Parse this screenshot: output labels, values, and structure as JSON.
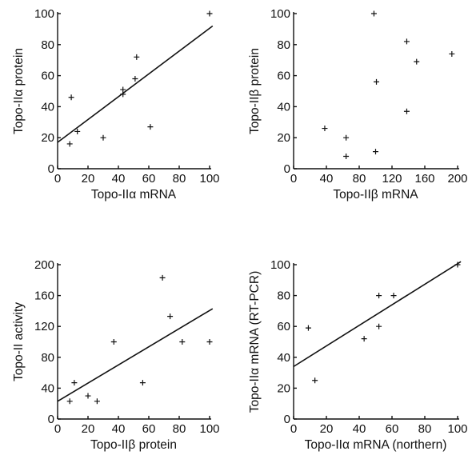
{
  "chart_data": [
    {
      "type": "scatter",
      "xlabel": "Topo-IIα mRNA",
      "ylabel": "Topo-IIα protein",
      "xlim": [
        0,
        100
      ],
      "ylim": [
        0,
        100
      ],
      "xticks": [
        0,
        20,
        40,
        60,
        80,
        100
      ],
      "yticks": [
        0,
        20,
        40,
        60,
        80,
        100
      ],
      "points": [
        {
          "x": 8,
          "y": 16
        },
        {
          "x": 9,
          "y": 46
        },
        {
          "x": 13,
          "y": 24
        },
        {
          "x": 30,
          "y": 20
        },
        {
          "x": 43,
          "y": 48
        },
        {
          "x": 43,
          "y": 51
        },
        {
          "x": 51,
          "y": 58
        },
        {
          "x": 52,
          "y": 72
        },
        {
          "x": 61,
          "y": 27
        },
        {
          "x": 100,
          "y": 100
        }
      ],
      "fit_line": [
        [
          0,
          17
        ],
        [
          102,
          92
        ]
      ]
    },
    {
      "type": "scatter",
      "xlabel": "Topo-IIβ mRNA",
      "ylabel": "Topo-IIβ protein",
      "xlim": [
        0,
        200
      ],
      "ylim": [
        0,
        100
      ],
      "xticks": [
        0,
        40,
        80,
        120,
        160,
        200
      ],
      "yticks": [
        0,
        20,
        40,
        60,
        80,
        100
      ],
      "points": [
        {
          "x": 38,
          "y": 26
        },
        {
          "x": 64,
          "y": 20
        },
        {
          "x": 64,
          "y": 8
        },
        {
          "x": 98,
          "y": 100
        },
        {
          "x": 101,
          "y": 56
        },
        {
          "x": 100,
          "y": 11
        },
        {
          "x": 138,
          "y": 82
        },
        {
          "x": 138,
          "y": 37
        },
        {
          "x": 150,
          "y": 69
        },
        {
          "x": 193,
          "y": 74
        }
      ]
    },
    {
      "type": "scatter",
      "xlabel": "Topo-IIβ protein",
      "ylabel": "Topo-II activity",
      "xlim": [
        0,
        100
      ],
      "ylim": [
        0,
        200
      ],
      "xticks": [
        0,
        20,
        40,
        60,
        80,
        100
      ],
      "yticks": [
        0,
        40,
        80,
        120,
        160,
        200
      ],
      "points": [
        {
          "x": 8,
          "y": 23
        },
        {
          "x": 11,
          "y": 47
        },
        {
          "x": 20,
          "y": 30
        },
        {
          "x": 26,
          "y": 23
        },
        {
          "x": 37,
          "y": 100
        },
        {
          "x": 56,
          "y": 47
        },
        {
          "x": 69,
          "y": 183
        },
        {
          "x": 74,
          "y": 133
        },
        {
          "x": 82,
          "y": 100
        },
        {
          "x": 100,
          "y": 100
        }
      ],
      "fit_line": [
        [
          0,
          23
        ],
        [
          102,
          143
        ]
      ]
    },
    {
      "type": "scatter",
      "xlabel": "Topo-IIα mRNA (northern)",
      "ylabel": "Topo-IIα mRNA (RT-PCR)",
      "xlim": [
        0,
        100
      ],
      "ylim": [
        0,
        100
      ],
      "xticks": [
        0,
        20,
        40,
        60,
        80,
        100
      ],
      "yticks": [
        0,
        20,
        40,
        60,
        80,
        100
      ],
      "points": [
        {
          "x": 9,
          "y": 59
        },
        {
          "x": 13,
          "y": 25
        },
        {
          "x": 43,
          "y": 52
        },
        {
          "x": 52,
          "y": 80
        },
        {
          "x": 52,
          "y": 60
        },
        {
          "x": 61,
          "y": 80
        },
        {
          "x": 100,
          "y": 100
        }
      ],
      "fit_line": [
        [
          0,
          34
        ],
        [
          102,
          102
        ]
      ]
    }
  ]
}
